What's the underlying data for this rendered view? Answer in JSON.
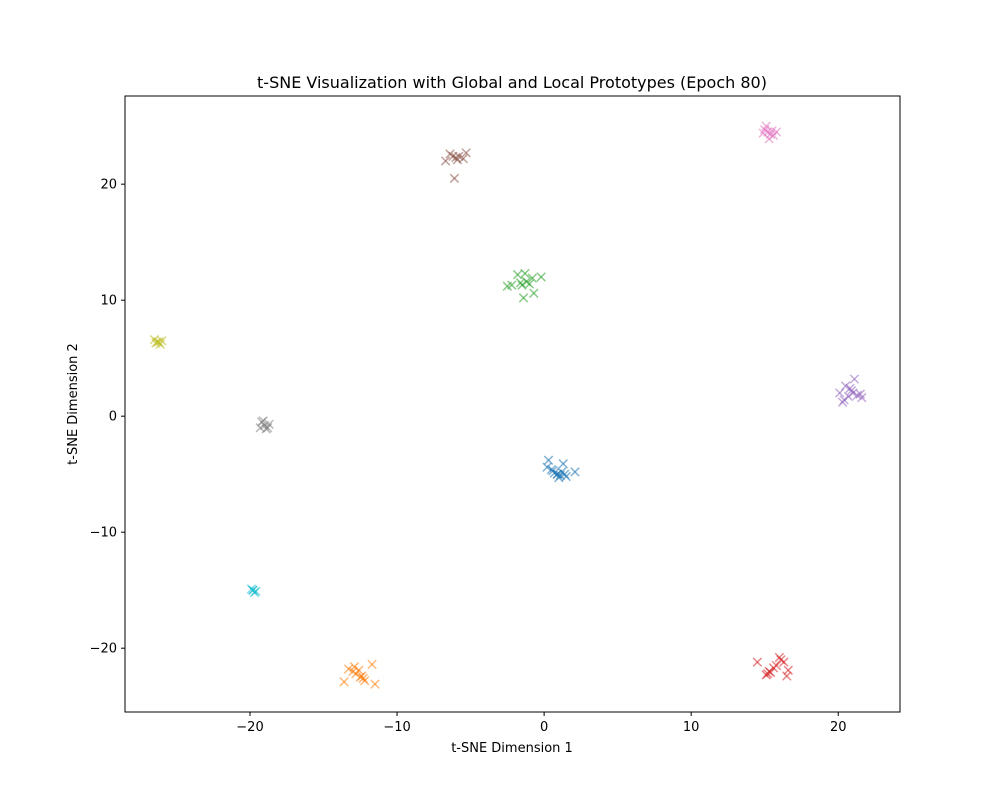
{
  "chart_data": {
    "type": "scatter",
    "title": "t-SNE Visualization with Global and Local Prototypes (Epoch 80)",
    "xlabel": "t-SNE Dimension 1",
    "ylabel": "t-SNE Dimension 2",
    "xlim": [
      -28.5,
      24.2
    ],
    "ylim": [
      -25.5,
      27.6
    ],
    "xticks": [
      {
        "value": -20,
        "label": "−20"
      },
      {
        "value": -10,
        "label": "−10"
      },
      {
        "value": 0,
        "label": "0"
      },
      {
        "value": 10,
        "label": "10"
      },
      {
        "value": 20,
        "label": "20"
      }
    ],
    "yticks": [
      {
        "value": -20,
        "label": "−20"
      },
      {
        "value": -10,
        "label": "−10"
      },
      {
        "value": 0,
        "label": "0"
      },
      {
        "value": 10,
        "label": "10"
      },
      {
        "value": 20,
        "label": "20"
      }
    ],
    "grid": false,
    "marker": "x",
    "series": [
      {
        "color": "#1f77b4",
        "x": [
          0.9,
          1.2,
          0.5,
          1.5,
          0.2,
          1.0,
          2.1,
          0.3,
          1.3,
          0.7,
          1.1,
          1.4,
          0.6,
          0.9
        ],
        "y": [
          -5.0,
          -4.8,
          -4.6,
          -5.2,
          -4.4,
          -5.3,
          -4.8,
          -3.8,
          -4.1,
          -4.9,
          -5.1,
          -5.0,
          -4.7,
          -5.0
        ]
      },
      {
        "color": "#ff7f0e",
        "x": [
          -12.5,
          -12.2,
          -12.8,
          -13.3,
          -11.7,
          -12.9,
          -13.6,
          -11.5,
          -12.4,
          -13.0,
          -12.6,
          -12.3
        ],
        "y": [
          -22.5,
          -22.8,
          -22.2,
          -21.8,
          -21.4,
          -21.6,
          -22.9,
          -23.1,
          -22.4,
          -22.0,
          -21.9,
          -22.6
        ]
      },
      {
        "color": "#2ca02c",
        "x": [
          -1.5,
          -1.2,
          -1.8,
          -0.8,
          -0.2,
          -2.5,
          -1.4,
          -0.7,
          -1.0,
          -1.6,
          -1.3,
          -2.2
        ],
        "y": [
          11.3,
          11.6,
          12.2,
          11.9,
          12.0,
          11.2,
          10.2,
          10.6,
          11.4,
          11.5,
          12.3,
          11.3
        ]
      },
      {
        "color": "#d62728",
        "x": [
          15.3,
          15.6,
          15.1,
          16.0,
          16.3,
          14.5,
          16.6,
          16.5,
          15.8,
          15.4,
          16.1,
          15.2
        ],
        "y": [
          -22.0,
          -21.7,
          -22.3,
          -20.8,
          -21.2,
          -21.2,
          -21.9,
          -22.4,
          -21.5,
          -22.1,
          -21.0,
          -22.2
        ]
      },
      {
        "color": "#9467bd",
        "x": [
          21.0,
          21.3,
          20.8,
          20.5,
          20.1,
          21.6,
          20.4,
          21.1,
          20.9,
          20.3,
          21.5,
          20.7
        ],
        "y": [
          2.0,
          1.8,
          2.4,
          2.6,
          2.0,
          1.6,
          1.4,
          3.2,
          2.2,
          1.2,
          1.9,
          1.7
        ]
      },
      {
        "color": "#8c564b",
        "x": [
          -6.2,
          -5.9,
          -6.4,
          -6.0,
          -6.7,
          -5.5,
          -5.3,
          -6.1,
          -5.8
        ],
        "y": [
          22.4,
          22.1,
          22.6,
          22.3,
          22.0,
          22.2,
          22.7,
          20.5,
          22.4
        ]
      },
      {
        "color": "#e377c2",
        "x": [
          15.2,
          15.4,
          15.0,
          15.6,
          14.9,
          15.3,
          15.8,
          15.1,
          15.5
        ],
        "y": [
          24.5,
          24.3,
          24.7,
          24.2,
          24.4,
          23.9,
          24.5,
          25.0,
          24.6
        ]
      },
      {
        "color": "#7f7f7f",
        "x": [
          -19.0,
          -18.8,
          -19.2,
          -18.9,
          -19.1,
          -18.7,
          -19.3
        ],
        "y": [
          -0.8,
          -1.0,
          -0.5,
          -1.1,
          -0.4,
          -0.7,
          -1.0
        ]
      },
      {
        "color": "#bcbd22",
        "x": [
          -26.3,
          -26.1,
          -26.5,
          -26.0,
          -26.4,
          -26.2
        ],
        "y": [
          6.4,
          6.2,
          6.6,
          6.5,
          6.3,
          6.4
        ]
      },
      {
        "color": "#17becf",
        "x": [
          -19.8,
          -19.6,
          -19.9,
          -19.7,
          -19.8
        ],
        "y": [
          -15.0,
          -15.1,
          -14.9,
          -15.2,
          -15.0
        ]
      }
    ]
  }
}
